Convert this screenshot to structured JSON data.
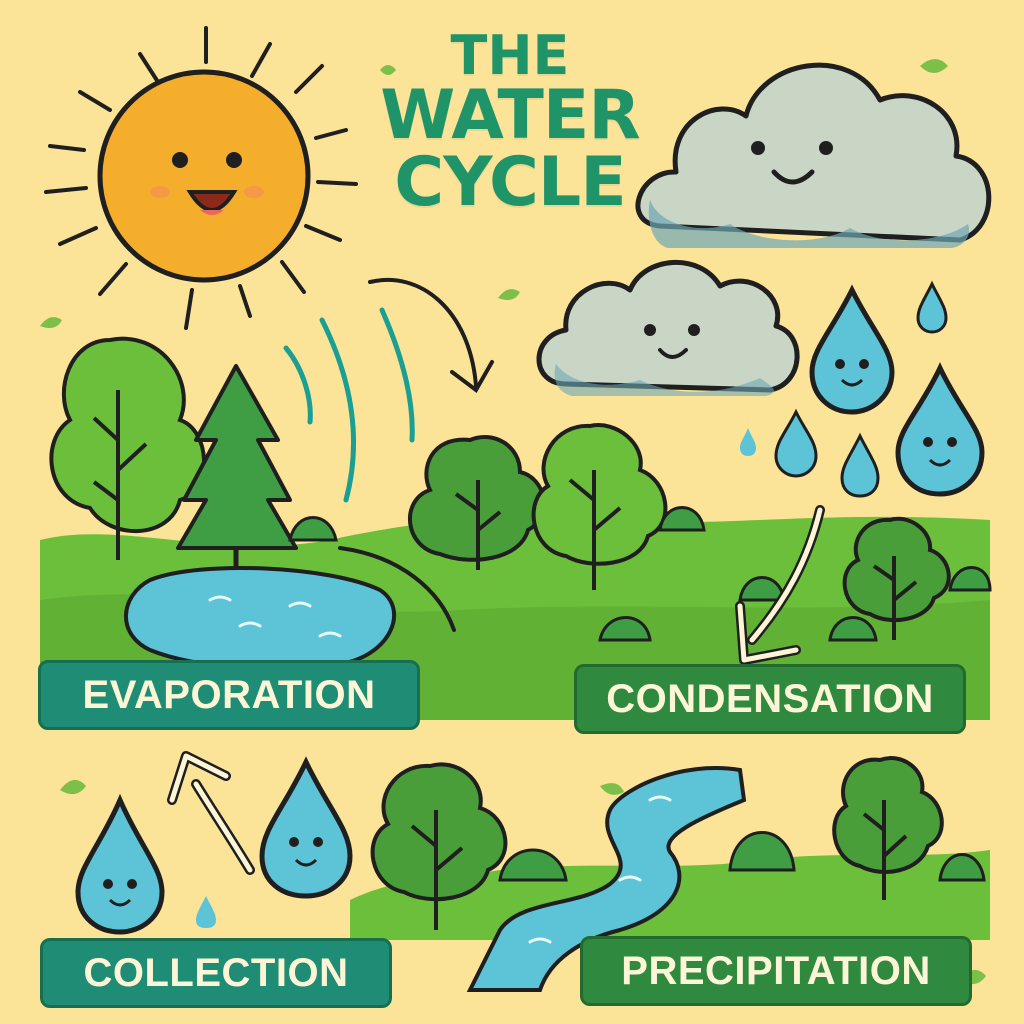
{
  "title": {
    "line1": "THE",
    "line2": "WATER",
    "line3": "CYCLE"
  },
  "labels": {
    "evaporation": "EVAPORATION",
    "condensation": "CONDENSATION",
    "collection": "COLLECTION",
    "precipitation": "PRECIPITATION"
  },
  "colors": {
    "background": "#fbe398",
    "title": "#1f9468",
    "label_teal": "#1f8d76",
    "label_green": "#2f8a3f",
    "sun": "#f5ae2c",
    "cloud": "#c9d6c6",
    "water": "#5cc4d6",
    "grass": "#6cbf3a",
    "tree": "#4a9e3a"
  },
  "icons": [
    "sun-icon",
    "cloud-icon",
    "raindrop-icon",
    "tree-icon",
    "pond-icon",
    "river-icon",
    "arrow-icon"
  ]
}
